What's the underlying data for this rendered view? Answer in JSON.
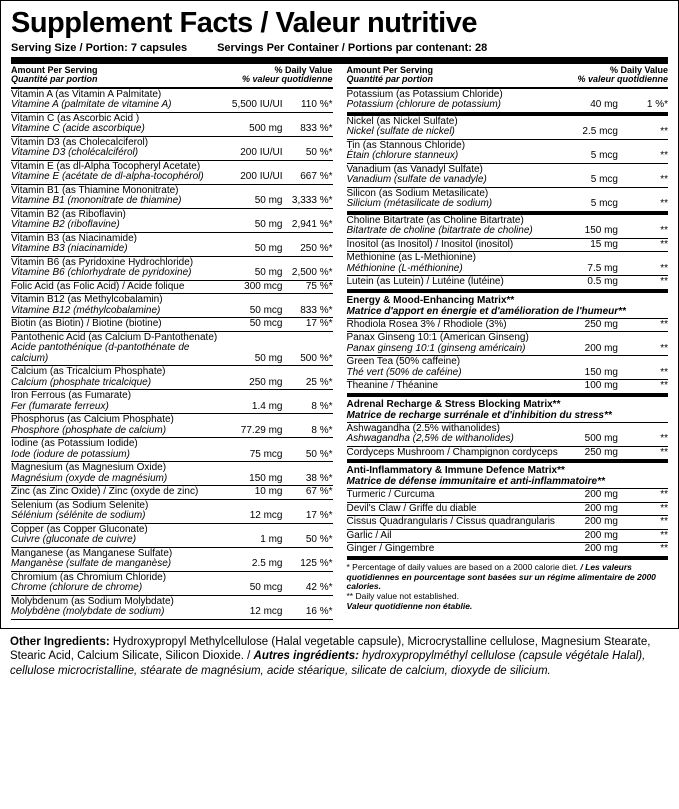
{
  "title": "Supplement Facts / Valeur nutritive",
  "serving_size_label": "Serving Size / Portion:",
  "serving_size_value": "7 capsules",
  "servings_per_label": "Servings Per Container / Portions par contenant:",
  "servings_per_value": "28",
  "hdr_amount_en": "Amount Per Serving",
  "hdr_amount_fr": "Quantité par portion",
  "hdr_dv_en": "% Daily Value",
  "hdr_dv_fr": "% valeur quotidienne",
  "left": [
    {
      "en": "Vitamin A (as Vitamin A Palmitate)",
      "fr": "Vitamine A (palmitate de vitamine A)",
      "amt": "5,500 IU/UI",
      "dv": "110 %*"
    },
    {
      "en": "Vitamin C (as Ascorbic Acid )",
      "fr": "Vitamine C (acide ascorbique)",
      "amt": "500 mg",
      "dv": "833 %*"
    },
    {
      "en": "Vitamin D3 (as Cholecalciferol)",
      "fr": "Vitamine D3 (cholécalciférol)",
      "amt": "200 IU/UI",
      "dv": "50 %*"
    },
    {
      "en": "Vitamin E (as dl-Alpha Tocopheryl Acetate)",
      "fr": "Vitamine E (acétate de dl-alpha-tocophérol)",
      "amt": "200 IU/UI",
      "dv": "667 %*"
    },
    {
      "en": "Vitamin B1 (as Thiamine Mononitrate)",
      "fr": "Vitamine B1 (mononitrate de thiamine)",
      "amt": "50 mg",
      "dv": "3,333 %*"
    },
    {
      "en": "Vitamin B2 (as Riboflavin)",
      "fr": "Vitamine B2 (riboflavine)",
      "amt": "50 mg",
      "dv": "2,941 %*"
    },
    {
      "en": "Vitamin B3 (as Niacinamide)",
      "fr": "Vitamine B3 (niacinamide)",
      "amt": "50 mg",
      "dv": "250 %*"
    },
    {
      "en": "Vitamin B6 (as Pyridoxine Hydrochloride)",
      "fr": "Vitamine B6 (chlorhydrate de pyridoxine)",
      "amt": "50 mg",
      "dv": "2,500 %*"
    },
    {
      "en": "Folic Acid (as Folic Acid) / Acide folique",
      "fr": "",
      "amt": "300 mcg",
      "dv": "75 %*"
    },
    {
      "en": "Vitamin B12 (as Methylcobalamin)",
      "fr": "Vitamine B12 (méthylcobalamine)",
      "amt": "50 mcg",
      "dv": "833 %*"
    },
    {
      "en": "Biotin (as Biotin) / Biotine (biotine)",
      "fr": "",
      "amt": "50 mcg",
      "dv": "17 %*"
    },
    {
      "en": "Pantothenic Acid (as Calcium D-Pantothenate)",
      "fr": "Acide pantothénique (d-pantothénate de calcium)",
      "amt": "50 mg",
      "dv": "500 %*"
    },
    {
      "en": "Calcium (as Tricalcium Phosphate)",
      "fr": "Calcium (phosphate tricalcique)",
      "amt": "250 mg",
      "dv": "25 %*"
    },
    {
      "en": "Iron Ferrous (as Fumarate)",
      "fr": "Fer (fumarate ferreux)",
      "amt": "1.4 mg",
      "dv": "8 %*"
    },
    {
      "en": "Phosphorus (as Calcium Phosphate)",
      "fr": "Phosphore (phosphate de calcium)",
      "amt": "77.29 mg",
      "dv": "8 %*"
    },
    {
      "en": "Iodine (as Potassium Iodide)",
      "fr": "Iode (iodure de potassium)",
      "amt": "75 mcg",
      "dv": "50 %*"
    },
    {
      "en": "Magnesium (as Magnesium Oxide)",
      "fr": "Magnésium (oxyde de magnésium)",
      "amt": "150 mg",
      "dv": "38 %*"
    },
    {
      "en": "Zinc (as Zinc Oxide) / Zinc (oxyde de zinc)",
      "fr": "",
      "amt": "10 mg",
      "dv": "67 %*"
    },
    {
      "en": "Selenium (as Sodium Selenite)",
      "fr": "Sélénium (sélénite de sodium)",
      "amt": "12 mcg",
      "dv": "17 %*"
    },
    {
      "en": "Copper (as Copper Gluconate)",
      "fr": "Cuivre (gluconate de cuivre)",
      "amt": "1 mg",
      "dv": "50 %*"
    },
    {
      "en": "Manganese (as Manganese Sulfate)",
      "fr": "Manganèse (sulfate de manganèse)",
      "amt": "2.5 mg",
      "dv": "125 %*"
    },
    {
      "en": "Chromium (as Chromium Chloride)",
      "fr": "Chrome (chlorure de chrome)",
      "amt": "50 mcg",
      "dv": "42 %*"
    },
    {
      "en": "Molybdenum (as Sodium Molybdate)",
      "fr": "Molybdène (molybdate de sodium)",
      "amt": "12 mcg",
      "dv": "16 %*"
    }
  ],
  "right": [
    {
      "en": "Potassium (as Potassium Chloride)",
      "fr": "Potassium (chlorure de potassium)",
      "amt": "40 mg",
      "dv": "1 %*",
      "thick": true
    },
    {
      "en": "Nickel (as Nickel Sulfate)",
      "fr": "Nickel (sulfate de nickel)",
      "amt": "2.5 mcg",
      "dv": "**"
    },
    {
      "en": "Tin (as Stannous Chloride)",
      "fr": "Étain (chlorure stanneux)",
      "amt": "5 mcg",
      "dv": "**"
    },
    {
      "en": "Vanadium (as Vanadyl Sulfate)",
      "fr": "Vanadium (sulfate de vanadyle)",
      "amt": "5 mcg",
      "dv": "**"
    },
    {
      "en": "Silicon (as Sodium Metasilicate)",
      "fr": "Silicium (métasilicate de sodium)",
      "amt": "5 mcg",
      "dv": "**",
      "thick": true
    },
    {
      "en": "Choline Bitartrate (as Choline Bitartrate)",
      "fr": "Bitartrate de choline (bitartrate de choline)",
      "amt": "150 mg",
      "dv": "**"
    },
    {
      "en": "Inositol (as Inositol) / Inositol (inositol)",
      "fr": "",
      "amt": "15 mg",
      "dv": "**"
    },
    {
      "en": "Methionine (as L-Methionine)",
      "fr": "Méthionine (L-méthionine)",
      "amt": "7.5 mg",
      "dv": "**"
    },
    {
      "en": "Lutein (as Lutein) / Lutéine (lutéine)",
      "fr": "",
      "amt": "0.5 mg",
      "dv": "**",
      "thick": true
    },
    {
      "section_en": "Energy & Mood-Enhancing Matrix**",
      "section_fr": "Matrice d'apport en énergie et d'amélioration de l'humeur**"
    },
    {
      "en": "Rhodiola Rosea 3% / Rhodiole (3%)",
      "fr": "",
      "amt": "250 mg",
      "dv": "**"
    },
    {
      "en": "Panax Ginseng 10:1 (American Ginseng)",
      "fr": "Panax ginseng 10:1 (ginseng américain)",
      "amt": "200 mg",
      "dv": "**"
    },
    {
      "en": "Green Tea (50% caffeine)",
      "fr": "Thé vert (50% de caféine)",
      "amt": "150 mg",
      "dv": "**"
    },
    {
      "en": "Theanine / Théanine",
      "fr": "",
      "amt": "100 mg",
      "dv": "**",
      "thick": true
    },
    {
      "section_en": "Adrenal Recharge & Stress Blocking Matrix**",
      "section_fr": "Matrice de recharge surrénale et d'inhibition du stress**"
    },
    {
      "en": "Ashwagandha (2.5% withanolides)",
      "fr": "Ashwagandha (2,5% de withanolides)",
      "amt": "500 mg",
      "dv": "**"
    },
    {
      "en": "Cordyceps Mushroom / Champignon cordyceps",
      "fr": "",
      "amt": "250 mg",
      "dv": "**",
      "thick": true
    },
    {
      "section_en": "Anti-Inflammatory & Immune Defence Matrix**",
      "section_fr": "Matrice de défense immunitaire et anti-inflammatoire**"
    },
    {
      "en": "Turmeric / Curcuma",
      "fr": "",
      "amt": "200 mg",
      "dv": "**"
    },
    {
      "en": "Devil's Claw / Griffe du diable",
      "fr": "",
      "amt": "200 mg",
      "dv": "**"
    },
    {
      "en": "Cissus Quadrangularis / Cissus quadrangularis",
      "fr": "",
      "amt": "200 mg",
      "dv": "**"
    },
    {
      "en": "Garlic / Ail",
      "fr": "",
      "amt": "200 mg",
      "dv": "**"
    },
    {
      "en": "Ginger / Gingembre",
      "fr": "",
      "amt": "200 mg",
      "dv": "**",
      "thick": true
    }
  ],
  "foot1_en": "* Percentage of daily values are based on a 2000 calorie diet.",
  "foot1_fr": " / Les valeurs quotidiennes en pourcentage sont basées sur un régime alimentaire de 2000 calories.",
  "foot2_en": "** Daily value not established.",
  "foot2_fr": "Valeur quotidienne non établie.",
  "other_label": "Other Ingredients:",
  "other_en": " Hydroxypropyl Methylcellulose (Halal vegetable capsule), Microcrystalline cellulose, Magnesium Stearate, Stearic Acid, Calcium Silicate, Silicon Dioxide. / ",
  "other_label_fr": "Autres ingrédients:",
  "other_fr": " hydroxypropylméthyl cellulose (capsule végétale Halal), cellulose microcristalline, stéarate de magnésium, acide stéarique, silicate de calcium, dioxyde de silicium."
}
